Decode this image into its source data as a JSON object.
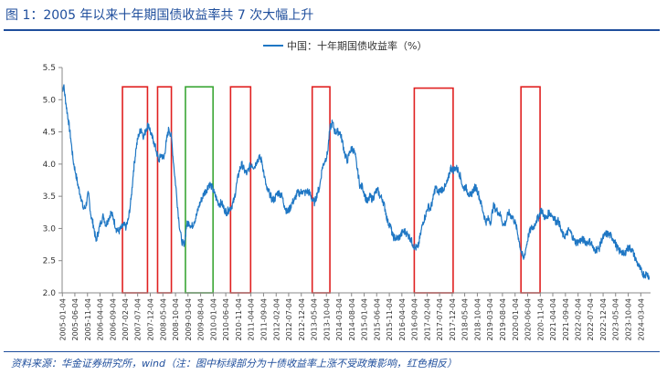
{
  "header": {
    "title": "图 1：2005 年以来十年期国债收益率共 7 次大幅上升"
  },
  "footer": {
    "source": "资料来源：华金证券研究所，wind（注：图中标绿部分为十债收益率上涨不受政策影响，红色相反）"
  },
  "colors": {
    "title": "#1f4e9c",
    "series": "#1f77c4",
    "red_box": "#e02020",
    "green_box": "#3aa635"
  },
  "chart_data": {
    "type": "line",
    "title": "",
    "xlabel": "",
    "ylabel": "",
    "ylim": [
      2.0,
      5.5
    ],
    "yticks": [
      2.0,
      2.5,
      3.0,
      3.5,
      4.0,
      4.5,
      5.0,
      5.5
    ],
    "yticklabels": [
      "2.0",
      "2.5",
      "3.0",
      "3.5",
      "4.0",
      "4.5",
      "5.0",
      "5.5"
    ],
    "xlim": [
      "2005-01-01",
      "2024-06-30"
    ],
    "xticklabels": [
      "2005-01-04",
      "2005-06-04",
      "2005-11-04",
      "2006-04-04",
      "2006-09-04",
      "2007-02-04",
      "2007-07-04",
      "2007-12-04",
      "2008-05-04",
      "2008-10-04",
      "2009-03-04",
      "2009-08-04",
      "2010-01-04",
      "2010-06-04",
      "2010-11-04",
      "2011-04-04",
      "2011-09-04",
      "2012-02-04",
      "2012-07-04",
      "2012-12-04",
      "2013-05-04",
      "2013-10-04",
      "2014-03-04",
      "2014-08-04",
      "2015-01-04",
      "2015-06-04",
      "2015-11-04",
      "2016-04-04",
      "2016-09-04",
      "2017-02-04",
      "2017-07-04",
      "2017-12-04",
      "2018-05-04",
      "2018-10-04",
      "2019-03-04",
      "2019-08-04",
      "2020-01-04",
      "2020-06-04",
      "2020-11-04",
      "2021-04-04",
      "2021-09-04",
      "2022-02-04",
      "2022-07-04",
      "2022-12-04",
      "2023-05-04",
      "2023-10-04",
      "2024-03-04"
    ],
    "grid": false,
    "legend_position": "top-center",
    "series": [
      {
        "name": "中国：十年期国债收益率（%）",
        "points": [
          [
            "2005-01-04",
            5.15
          ],
          [
            "2005-01-20",
            5.22
          ],
          [
            "2005-02-15",
            4.95
          ],
          [
            "2005-03-15",
            4.7
          ],
          [
            "2005-04-15",
            4.4
          ],
          [
            "2005-05-15",
            4.05
          ],
          [
            "2005-06-15",
            3.85
          ],
          [
            "2005-07-15",
            3.65
          ],
          [
            "2005-08-15",
            3.5
          ],
          [
            "2005-09-15",
            3.3
          ],
          [
            "2005-10-15",
            3.35
          ],
          [
            "2005-11-15",
            3.55
          ],
          [
            "2005-12-15",
            3.2
          ],
          [
            "2006-01-15",
            3.05
          ],
          [
            "2006-02-15",
            2.8
          ],
          [
            "2006-03-15",
            2.95
          ],
          [
            "2006-04-15",
            3.1
          ],
          [
            "2006-05-15",
            3.2
          ],
          [
            "2006-06-15",
            3.05
          ],
          [
            "2006-07-15",
            3.15
          ],
          [
            "2006-08-15",
            3.25
          ],
          [
            "2006-09-15",
            3.15
          ],
          [
            "2006-10-15",
            3.0
          ],
          [
            "2006-11-15",
            2.95
          ],
          [
            "2006-12-15",
            3.0
          ],
          [
            "2007-01-15",
            3.05
          ],
          [
            "2007-02-15",
            3.02
          ],
          [
            "2007-03-15",
            3.15
          ],
          [
            "2007-04-15",
            3.45
          ],
          [
            "2007-05-15",
            3.9
          ],
          [
            "2007-06-15",
            4.25
          ],
          [
            "2007-07-15",
            4.45
          ],
          [
            "2007-08-15",
            4.55
          ],
          [
            "2007-09-15",
            4.42
          ],
          [
            "2007-10-15",
            4.55
          ],
          [
            "2007-11-15",
            4.62
          ],
          [
            "2007-12-15",
            4.45
          ],
          [
            "2008-01-15",
            4.35
          ],
          [
            "2008-02-15",
            4.2
          ],
          [
            "2008-03-15",
            4.05
          ],
          [
            "2008-04-15",
            4.15
          ],
          [
            "2008-05-15",
            4.08
          ],
          [
            "2008-06-15",
            4.35
          ],
          [
            "2008-07-15",
            4.55
          ],
          [
            "2008-08-15",
            4.42
          ],
          [
            "2008-09-15",
            3.95
          ],
          [
            "2008-10-15",
            3.55
          ],
          [
            "2008-11-15",
            3.1
          ],
          [
            "2008-12-15",
            2.82
          ],
          [
            "2009-01-15",
            2.72
          ],
          [
            "2009-02-15",
            3.05
          ],
          [
            "2009-03-15",
            3.1
          ],
          [
            "2009-04-15",
            3.02
          ],
          [
            "2009-05-15",
            3.1
          ],
          [
            "2009-06-15",
            3.2
          ],
          [
            "2009-07-15",
            3.35
          ],
          [
            "2009-08-15",
            3.45
          ],
          [
            "2009-09-15",
            3.55
          ],
          [
            "2009-10-15",
            3.6
          ],
          [
            "2009-11-15",
            3.7
          ],
          [
            "2009-12-15",
            3.65
          ],
          [
            "2010-01-15",
            3.55
          ],
          [
            "2010-02-15",
            3.45
          ],
          [
            "2010-03-15",
            3.38
          ],
          [
            "2010-04-15",
            3.4
          ],
          [
            "2010-05-15",
            3.3
          ],
          [
            "2010-06-15",
            3.25
          ],
          [
            "2010-07-15",
            3.3
          ],
          [
            "2010-08-15",
            3.35
          ],
          [
            "2010-09-15",
            3.45
          ],
          [
            "2010-10-15",
            3.7
          ],
          [
            "2010-11-15",
            3.9
          ],
          [
            "2010-12-15",
            4.0
          ],
          [
            "2011-01-15",
            3.9
          ],
          [
            "2011-02-15",
            3.85
          ],
          [
            "2011-03-15",
            3.95
          ],
          [
            "2011-04-15",
            4.0
          ],
          [
            "2011-05-15",
            3.95
          ],
          [
            "2011-06-15",
            4.05
          ],
          [
            "2011-07-15",
            4.1
          ],
          [
            "2011-08-15",
            4.05
          ],
          [
            "2011-09-15",
            3.8
          ],
          [
            "2011-10-15",
            3.6
          ],
          [
            "2011-11-15",
            3.55
          ],
          [
            "2011-12-15",
            3.45
          ],
          [
            "2012-01-15",
            3.45
          ],
          [
            "2012-02-15",
            3.55
          ],
          [
            "2012-03-15",
            3.55
          ],
          [
            "2012-04-15",
            3.5
          ],
          [
            "2012-05-15",
            3.35
          ],
          [
            "2012-06-15",
            3.25
          ],
          [
            "2012-07-15",
            3.3
          ],
          [
            "2012-08-15",
            3.4
          ],
          [
            "2012-09-15",
            3.45
          ],
          [
            "2012-10-15",
            3.55
          ],
          [
            "2012-11-15",
            3.55
          ],
          [
            "2012-12-15",
            3.58
          ],
          [
            "2013-01-15",
            3.55
          ],
          [
            "2013-02-15",
            3.58
          ],
          [
            "2013-03-15",
            3.55
          ],
          [
            "2013-04-15",
            3.45
          ],
          [
            "2013-05-15",
            3.4
          ],
          [
            "2013-06-15",
            3.55
          ],
          [
            "2013-07-15",
            3.65
          ],
          [
            "2013-08-15",
            3.95
          ],
          [
            "2013-09-15",
            4.05
          ],
          [
            "2013-10-15",
            4.15
          ],
          [
            "2013-11-15",
            4.55
          ],
          [
            "2013-12-15",
            4.65
          ],
          [
            "2014-01-15",
            4.5
          ],
          [
            "2014-02-15",
            4.5
          ],
          [
            "2014-03-15",
            4.5
          ],
          [
            "2014-04-15",
            4.35
          ],
          [
            "2014-05-15",
            4.15
          ],
          [
            "2014-06-15",
            4.05
          ],
          [
            "2014-07-15",
            4.2
          ],
          [
            "2014-08-15",
            4.25
          ],
          [
            "2014-09-15",
            4.15
          ],
          [
            "2014-10-15",
            3.9
          ],
          [
            "2014-11-15",
            3.65
          ],
          [
            "2014-12-15",
            3.65
          ],
          [
            "2015-01-15",
            3.5
          ],
          [
            "2015-02-15",
            3.4
          ],
          [
            "2015-03-15",
            3.5
          ],
          [
            "2015-04-15",
            3.45
          ],
          [
            "2015-05-15",
            3.55
          ],
          [
            "2015-06-15",
            3.6
          ],
          [
            "2015-07-15",
            3.5
          ],
          [
            "2015-08-15",
            3.45
          ],
          [
            "2015-09-15",
            3.3
          ],
          [
            "2015-10-15",
            3.1
          ],
          [
            "2015-11-15",
            3.05
          ],
          [
            "2015-12-15",
            2.88
          ],
          [
            "2016-01-15",
            2.85
          ],
          [
            "2016-02-15",
            2.85
          ],
          [
            "2016-03-15",
            2.88
          ],
          [
            "2016-04-15",
            2.95
          ],
          [
            "2016-05-15",
            2.95
          ],
          [
            "2016-06-15",
            2.9
          ],
          [
            "2016-07-15",
            2.85
          ],
          [
            "2016-08-15",
            2.75
          ],
          [
            "2016-09-15",
            2.7
          ],
          [
            "2016-10-15",
            2.7
          ],
          [
            "2016-11-15",
            2.9
          ],
          [
            "2016-12-15",
            3.1
          ],
          [
            "2017-01-15",
            3.2
          ],
          [
            "2017-02-15",
            3.35
          ],
          [
            "2017-03-15",
            3.3
          ],
          [
            "2017-04-15",
            3.45
          ],
          [
            "2017-05-15",
            3.65
          ],
          [
            "2017-06-15",
            3.55
          ],
          [
            "2017-07-15",
            3.6
          ],
          [
            "2017-08-15",
            3.62
          ],
          [
            "2017-09-15",
            3.65
          ],
          [
            "2017-10-15",
            3.75
          ],
          [
            "2017-11-15",
            3.95
          ],
          [
            "2017-12-15",
            3.9
          ],
          [
            "2018-01-15",
            3.95
          ],
          [
            "2018-02-15",
            3.9
          ],
          [
            "2018-03-15",
            3.8
          ],
          [
            "2018-04-15",
            3.62
          ],
          [
            "2018-05-15",
            3.65
          ],
          [
            "2018-06-15",
            3.55
          ],
          [
            "2018-07-15",
            3.5
          ],
          [
            "2018-08-15",
            3.6
          ],
          [
            "2018-09-15",
            3.65
          ],
          [
            "2018-10-15",
            3.55
          ],
          [
            "2018-11-15",
            3.4
          ],
          [
            "2018-12-15",
            3.25
          ],
          [
            "2019-01-15",
            3.1
          ],
          [
            "2019-02-15",
            3.15
          ],
          [
            "2019-03-15",
            3.1
          ],
          [
            "2019-04-15",
            3.35
          ],
          [
            "2019-05-15",
            3.3
          ],
          [
            "2019-06-15",
            3.25
          ],
          [
            "2019-07-15",
            3.2
          ],
          [
            "2019-08-15",
            3.05
          ],
          [
            "2019-09-15",
            3.1
          ],
          [
            "2019-10-15",
            3.25
          ],
          [
            "2019-11-15",
            3.2
          ],
          [
            "2019-12-15",
            3.15
          ],
          [
            "2020-01-15",
            3.05
          ],
          [
            "2020-02-15",
            2.85
          ],
          [
            "2020-03-15",
            2.65
          ],
          [
            "2020-04-15",
            2.52
          ],
          [
            "2020-05-15",
            2.7
          ],
          [
            "2020-06-15",
            2.9
          ],
          [
            "2020-07-15",
            3.0
          ],
          [
            "2020-08-15",
            3.02
          ],
          [
            "2020-09-15",
            3.12
          ],
          [
            "2020-10-15",
            3.18
          ],
          [
            "2020-11-15",
            3.3
          ],
          [
            "2020-12-15",
            3.2
          ],
          [
            "2021-01-15",
            3.15
          ],
          [
            "2021-02-15",
            3.25
          ],
          [
            "2021-03-15",
            3.22
          ],
          [
            "2021-04-15",
            3.18
          ],
          [
            "2021-05-15",
            3.1
          ],
          [
            "2021-06-15",
            3.12
          ],
          [
            "2021-07-15",
            2.95
          ],
          [
            "2021-08-15",
            2.88
          ],
          [
            "2021-09-15",
            2.9
          ],
          [
            "2021-10-15",
            2.98
          ],
          [
            "2021-11-15",
            2.92
          ],
          [
            "2021-12-15",
            2.82
          ],
          [
            "2022-01-15",
            2.78
          ],
          [
            "2022-02-15",
            2.8
          ],
          [
            "2022-03-15",
            2.82
          ],
          [
            "2022-04-15",
            2.82
          ],
          [
            "2022-05-15",
            2.78
          ],
          [
            "2022-06-15",
            2.8
          ],
          [
            "2022-07-15",
            2.78
          ],
          [
            "2022-08-15",
            2.65
          ],
          [
            "2022-09-15",
            2.68
          ],
          [
            "2022-10-15",
            2.68
          ],
          [
            "2022-11-15",
            2.82
          ],
          [
            "2022-12-15",
            2.88
          ],
          [
            "2023-01-15",
            2.92
          ],
          [
            "2023-02-15",
            2.9
          ],
          [
            "2023-03-15",
            2.88
          ],
          [
            "2023-04-15",
            2.82
          ],
          [
            "2023-05-15",
            2.72
          ],
          [
            "2023-06-15",
            2.65
          ],
          [
            "2023-07-15",
            2.65
          ],
          [
            "2023-08-15",
            2.58
          ],
          [
            "2023-09-15",
            2.68
          ],
          [
            "2023-10-15",
            2.7
          ],
          [
            "2023-11-15",
            2.68
          ],
          [
            "2023-12-15",
            2.58
          ],
          [
            "2024-01-15",
            2.48
          ],
          [
            "2024-02-15",
            2.4
          ],
          [
            "2024-03-15",
            2.32
          ],
          [
            "2024-04-15",
            2.28
          ],
          [
            "2024-05-15",
            2.3
          ],
          [
            "2024-06-15",
            2.25
          ]
        ]
      }
    ],
    "annotations": [
      {
        "kind": "red",
        "start": "2007-01-01",
        "end": "2007-10-31",
        "y_low": 2.0,
        "y_high": 5.2
      },
      {
        "kind": "red",
        "start": "2008-03-01",
        "end": "2008-08-15",
        "y_low": 2.0,
        "y_high": 5.2
      },
      {
        "kind": "green",
        "start": "2009-02-01",
        "end": "2010-01-01",
        "y_low": 2.0,
        "y_high": 5.2
      },
      {
        "kind": "red",
        "start": "2010-08-01",
        "end": "2011-04-01",
        "y_low": 2.0,
        "y_high": 5.2
      },
      {
        "kind": "red",
        "start": "2013-04-15",
        "end": "2013-11-15",
        "y_low": 2.0,
        "y_high": 5.2
      },
      {
        "kind": "red",
        "start": "2016-09-01",
        "end": "2017-12-15",
        "y_low": 2.0,
        "y_high": 5.18
      },
      {
        "kind": "red",
        "start": "2020-03-15",
        "end": "2020-11-01",
        "y_low": 2.0,
        "y_high": 5.2
      }
    ]
  }
}
